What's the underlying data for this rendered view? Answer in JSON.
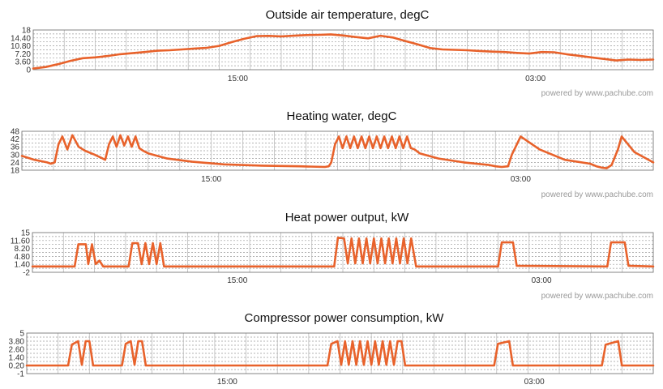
{
  "credit": "powered by www.pachube.com",
  "colors": {
    "series": "#e8622b",
    "grid": "#9a9a9a"
  },
  "chart_data": [
    {
      "type": "line",
      "title": "Outside air temperature, degC",
      "ylim": [
        0,
        18
      ],
      "yticks": [
        "18",
        "14.40",
        "10.80",
        "7.20",
        "3.60",
        "0"
      ],
      "xlim": [
        0,
        100
      ],
      "xticks": [
        {
          "x": 33,
          "label": "15:00"
        },
        {
          "x": 81,
          "label": "03:00"
        }
      ],
      "grid": true,
      "series": [
        {
          "x": [
            0,
            2,
            4,
            6,
            8,
            10,
            12,
            14,
            16,
            18,
            20,
            22,
            24,
            26,
            28,
            30,
            32,
            34,
            36,
            38,
            40,
            42,
            44,
            46,
            48,
            50,
            52,
            54,
            56,
            58,
            60,
            62,
            64,
            66,
            68,
            70,
            72,
            74,
            76,
            78,
            80,
            82,
            84,
            86,
            88,
            90,
            92,
            94,
            96,
            98,
            100
          ],
          "y": [
            0.5,
            1.2,
            2.5,
            4.0,
            5.2,
            5.6,
            6.2,
            7.0,
            7.5,
            8.0,
            8.6,
            8.8,
            9.2,
            9.6,
            9.9,
            10.8,
            12.5,
            14.0,
            15.2,
            15.3,
            15.1,
            15.4,
            15.7,
            15.8,
            16.0,
            15.5,
            14.8,
            14.2,
            15.4,
            14.6,
            13.0,
            11.5,
            9.8,
            9.2,
            9.0,
            8.8,
            8.5,
            8.2,
            8.0,
            7.6,
            7.3,
            8.0,
            7.9,
            7.0,
            6.3,
            5.6,
            4.9,
            4.2,
            4.6,
            4.4,
            4.6
          ]
        }
      ]
    },
    {
      "type": "line",
      "title": "Heating water, degC",
      "ylim": [
        18,
        48
      ],
      "yticks": [
        "48",
        "42",
        "36",
        "30",
        "24",
        "18"
      ],
      "xlim": [
        0,
        100
      ],
      "xticks": [
        {
          "x": 30,
          "label": "15:00"
        },
        {
          "x": 79,
          "label": "03:00"
        }
      ],
      "grid": true,
      "series": [
        {
          "x": [
            0,
            2,
            4,
            4.6,
            5.2,
            5.8,
            6.4,
            7.2,
            8,
            9,
            10,
            11.5,
            12.8,
            13.2,
            13.8,
            14.4,
            15,
            15.6,
            16.2,
            16.8,
            17.4,
            18,
            18.6,
            19.2,
            20,
            23,
            27,
            32,
            38,
            44,
            48,
            48.6,
            49,
            49.6,
            50.2,
            50.8,
            51.4,
            52,
            52.6,
            53.2,
            53.8,
            54.4,
            55,
            55.6,
            56.2,
            56.8,
            57.4,
            58,
            58.6,
            59.2,
            59.8,
            60.4,
            61,
            61.6,
            62.2,
            63,
            66,
            70,
            74,
            75,
            76,
            77,
            77.6,
            79,
            82,
            86,
            90,
            91,
            91.8,
            92.6,
            93.4,
            94.4,
            95,
            97,
            100
          ],
          "y": [
            29,
            26,
            24,
            23,
            24,
            38,
            44,
            34,
            45,
            36,
            33,
            30,
            27,
            26,
            38,
            44,
            36,
            45,
            37,
            44,
            36,
            44,
            35,
            33,
            31,
            27,
            24.5,
            22.5,
            21.5,
            21,
            20.5,
            21,
            24,
            38,
            44,
            35,
            44,
            35,
            44,
            35,
            44,
            35,
            44,
            35,
            44,
            35,
            44,
            35,
            44,
            35,
            44,
            35,
            44,
            35,
            34,
            31,
            27,
            24,
            22,
            21,
            20.5,
            21,
            30,
            44,
            34,
            26,
            23,
            21,
            20,
            19.5,
            22,
            34,
            44,
            32,
            24
          ]
        }
      ]
    },
    {
      "type": "line",
      "title": "Heat power output, kW",
      "ylim": [
        -2,
        15
      ],
      "yticks": [
        "15",
        "11.60",
        "8.20",
        "4.80",
        "1.40",
        "-2"
      ],
      "xlim": [
        0,
        100
      ],
      "xticks": [
        {
          "x": 33,
          "label": "15:00"
        },
        {
          "x": 82,
          "label": "03:00"
        }
      ],
      "grid": true,
      "series": [
        {
          "x": [
            0,
            6.8,
            7.4,
            8.6,
            9.0,
            9.6,
            10.2,
            10.8,
            11.4,
            12.0,
            15.5,
            16.1,
            17.0,
            17.6,
            18.2,
            18.8,
            19.4,
            20.0,
            20.6,
            21.2,
            22.0,
            48.6,
            49.2,
            50.2,
            50.8,
            51.4,
            52.0,
            52.6,
            53.2,
            53.8,
            54.4,
            55.0,
            55.6,
            56.2,
            56.8,
            57.4,
            58.0,
            58.6,
            59.2,
            59.8,
            60.4,
            61.0,
            61.8,
            75.0,
            75.6,
            77.4,
            78.0,
            92.6,
            93.2,
            95.4,
            96.0,
            100
          ],
          "y": [
            0.5,
            0.5,
            10,
            10,
            1.5,
            10,
            1.5,
            3.0,
            0.5,
            0.5,
            0.5,
            10.5,
            10.5,
            1.5,
            10.5,
            1.5,
            10.5,
            1.5,
            10.5,
            0.5,
            0.5,
            0.5,
            12.8,
            12.5,
            1.8,
            12.5,
            1.8,
            12.5,
            1.8,
            12.5,
            1.8,
            12.5,
            1.8,
            12.5,
            1.8,
            12.5,
            1.8,
            12.5,
            1.8,
            12.5,
            1.8,
            12.5,
            0.5,
            0.5,
            10.8,
            10.8,
            0.8,
            0.5,
            10.8,
            10.8,
            0.8,
            0.5
          ]
        }
      ]
    },
    {
      "type": "line",
      "title": "Compressor power consumption, kW",
      "ylim": [
        -1,
        5
      ],
      "yticks": [
        "5",
        "3.80",
        "2.60",
        "1.40",
        "0.20",
        "-1"
      ],
      "xlim": [
        0,
        100
      ],
      "xticks": [
        {
          "x": 32,
          "label": "15:00"
        },
        {
          "x": 81,
          "label": "03:00"
        }
      ],
      "grid": true,
      "series": [
        {
          "x": [
            0,
            6.6,
            7.2,
            8.2,
            8.8,
            9.4,
            10.0,
            10.6,
            15.2,
            15.8,
            16.6,
            17.2,
            17.8,
            18.4,
            19.0,
            48.0,
            48.6,
            49.6,
            50.2,
            50.8,
            51.4,
            52.0,
            52.6,
            53.2,
            53.8,
            54.4,
            55.0,
            55.6,
            56.2,
            56.8,
            57.4,
            58.0,
            58.6,
            59.2,
            59.8,
            60.4,
            74.6,
            75.2,
            77.0,
            77.6,
            91.8,
            92.4,
            94.4,
            95.0,
            100
          ],
          "y": [
            0.2,
            0.2,
            3.3,
            3.8,
            0.3,
            3.8,
            3.8,
            0.2,
            0.2,
            3.4,
            3.8,
            0.3,
            3.8,
            3.8,
            0.2,
            0.2,
            3.4,
            3.8,
            0.3,
            3.8,
            0.3,
            3.8,
            0.3,
            3.8,
            0.3,
            3.8,
            0.3,
            3.8,
            0.3,
            3.8,
            0.3,
            3.8,
            0.3,
            3.8,
            3.8,
            0.2,
            0.2,
            3.4,
            3.8,
            0.2,
            0.2,
            3.3,
            3.8,
            0.2,
            0.2
          ]
        }
      ]
    }
  ]
}
